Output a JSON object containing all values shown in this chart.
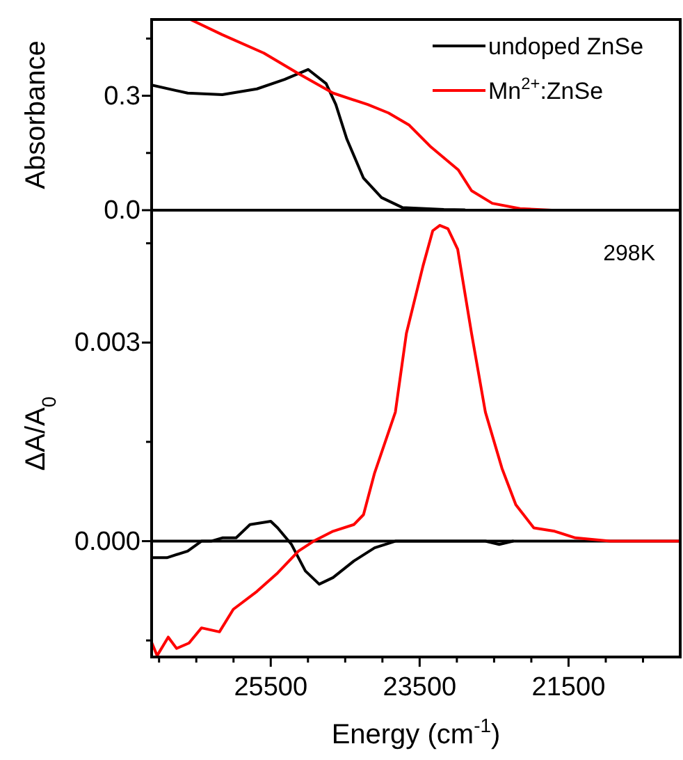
{
  "chart_data": [
    {
      "type": "line",
      "ylabel": "Absorbance",
      "xlim": [
        27100,
        20000
      ],
      "ylim": [
        0,
        0.5
      ],
      "yticks": [
        {
          "value": 0.0,
          "label": "0.0"
        },
        {
          "value": 0.15,
          "label": null
        },
        {
          "value": 0.3,
          "label": "0.3"
        },
        {
          "value": 0.45,
          "label": null
        }
      ],
      "tick_labels": "y",
      "legend": "top right",
      "series": [
        {
          "name": "undoped ZnSe",
          "color": "#000000",
          "x": [
            27100,
            26616,
            26151,
            25686,
            25314,
            24998,
            24756,
            24626,
            24477,
            24254,
            24012,
            23733,
            23175,
            22896
          ],
          "values": [
            0.328,
            0.307,
            0.303,
            0.318,
            0.343,
            0.369,
            0.332,
            0.277,
            0.186,
            0.084,
            0.033,
            0.007,
            0.002,
            0.001
          ]
        },
        {
          "name": "Mn$^{2+}$:ZnSe",
          "color": "#ff0000",
          "x": [
            26579,
            26151,
            25593,
            25128,
            24663,
            24198,
            23919,
            23640,
            23361,
            22982,
            22803,
            22524,
            22152,
            21725
          ],
          "values": [
            0.5,
            0.46,
            0.412,
            0.358,
            0.307,
            0.277,
            0.255,
            0.223,
            0.168,
            0.106,
            0.051,
            0.018,
            0.004,
            0.0
          ]
        }
      ]
    },
    {
      "type": "line",
      "xlabel": "Energy (cm$^{-1}$)",
      "ylabel": "ΔA/A$_{0}$",
      "annotations": [
        "298K"
      ],
      "xlim": [
        27100,
        20000
      ],
      "ylim": [
        -0.00175,
        0.005
      ],
      "xticks": [
        {
          "value": 27000,
          "label": null
        },
        {
          "value": 26500,
          "label": null
        },
        {
          "value": 26000,
          "label": null
        },
        25500,
        {
          "value": 25000,
          "label": null
        },
        {
          "value": 24500,
          "label": null
        },
        {
          "value": 24000,
          "label": null
        },
        23500,
        {
          "value": 23000,
          "label": null
        },
        {
          "value": 22500,
          "label": null
        },
        {
          "value": 22000,
          "label": null
        },
        21500,
        {
          "value": 21000,
          "label": null
        },
        {
          "value": 20500,
          "label": null
        }
      ],
      "yticks": [
        {
          "value": -0.0015,
          "label": null
        },
        {
          "value": 0,
          "label": "0.000"
        },
        {
          "value": 0.0015,
          "label": null
        },
        {
          "value": 0.003,
          "label": "0.003"
        },
        {
          "value": 0.0045,
          "label": null
        }
      ],
      "ref_lines": [
        {
          "axis": "y",
          "value": 0,
          "color": "#000000"
        }
      ],
      "series": [
        {
          "color": "#000000",
          "x": [
            27100,
            26895,
            26616,
            26431,
            26301,
            26151,
            25965,
            25779,
            25500,
            25407,
            25221,
            25035,
            24849,
            24663,
            24384,
            24105,
            23826,
            23361,
            22617,
            22431,
            22245
          ],
          "values": [
            -0.00025,
            -0.00025,
            -0.00015,
            0,
            0,
            5e-05,
            5e-05,
            0.00025,
            0.0003,
            0.0002,
            -5e-05,
            -0.00045,
            -0.00065,
            -0.00055,
            -0.0003,
            -0.0001,
            0,
            0,
            0,
            -5e-05,
            0
          ]
        },
        {
          "color": "#ff0000",
          "x": [
            27100,
            27026,
            26877,
            26765,
            26598,
            26431,
            26189,
            26003,
            25686,
            25407,
            25128,
            24924,
            24663,
            24384,
            24254,
            24105,
            23826,
            23678,
            23454,
            23324,
            23229,
            23120,
            22989,
            22803,
            22617,
            22394,
            22208,
            21966,
            21687,
            21408,
            20943,
            20478,
            20000
          ],
          "values": [
            -0.00153,
            -0.00173,
            -0.00145,
            -0.00162,
            -0.00154,
            -0.00131,
            -0.00137,
            -0.00103,
            -0.00076,
            -0.00048,
            -0.00015,
            0,
            0.00015,
            0.00025,
            0.0004,
            0.00103,
            0.00195,
            0.00314,
            0.00416,
            0.00469,
            0.00477,
            0.00472,
            0.00441,
            0.00314,
            0.00195,
            0.0011,
            0.00055,
            0.0002,
            0.00015,
            5e-05,
            0,
            0,
            0
          ]
        }
      ]
    }
  ]
}
